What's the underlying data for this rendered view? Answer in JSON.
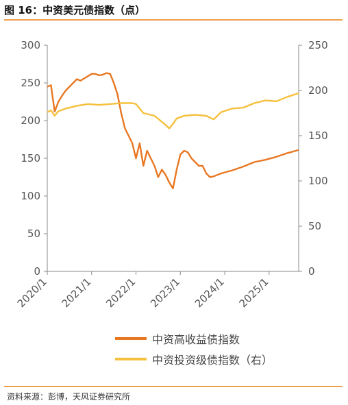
{
  "figure": {
    "title": "图 16：中资美元债指数（点）",
    "source": "资料来源：彭博，天风证券研究所"
  },
  "chart_data": {
    "type": "line",
    "x_ticks": [
      "2020/1",
      "2021/1",
      "2022/1",
      "2023/1",
      "2024/1",
      "2025/1"
    ],
    "x_range": [
      "2020/1",
      "2025/9"
    ],
    "y_left": {
      "range": [
        0,
        300
      ],
      "ticks": [
        "0",
        "50",
        "100",
        "150",
        "200",
        "250",
        "300"
      ]
    },
    "y_right": {
      "range": [
        0,
        250
      ],
      "ticks": [
        "0",
        "50",
        "100",
        "150",
        "200",
        "250"
      ]
    },
    "grid": false,
    "legend_position": "bottom",
    "series": [
      {
        "name": "中资高收益债指数",
        "axis": "left",
        "color": "#e87722",
        "points": [
          [
            "2020/1",
            245
          ],
          [
            "2020/2",
            247
          ],
          [
            "2020/3",
            212
          ],
          [
            "2020/4",
            225
          ],
          [
            "2020/5",
            233
          ],
          [
            "2020/6",
            240
          ],
          [
            "2020/7",
            245
          ],
          [
            "2020/8",
            250
          ],
          [
            "2020/9",
            255
          ],
          [
            "2020/10",
            253
          ],
          [
            "2020/11",
            256
          ],
          [
            "2020/12",
            259
          ],
          [
            "2021/1",
            262
          ],
          [
            "2021/2",
            262
          ],
          [
            "2021/3",
            260
          ],
          [
            "2021/4",
            261
          ],
          [
            "2021/5",
            263
          ],
          [
            "2021/6",
            262
          ],
          [
            "2021/7",
            250
          ],
          [
            "2021/8",
            235
          ],
          [
            "2021/9",
            210
          ],
          [
            "2021/10",
            190
          ],
          [
            "2021/11",
            180
          ],
          [
            "2021/12",
            170
          ],
          [
            "2022/1",
            150
          ],
          [
            "2022/2",
            170
          ],
          [
            "2022/3",
            140
          ],
          [
            "2022/4",
            160
          ],
          [
            "2022/5",
            150
          ],
          [
            "2022/6",
            140
          ],
          [
            "2022/7",
            125
          ],
          [
            "2022/8",
            135
          ],
          [
            "2022/9",
            128
          ],
          [
            "2022/10",
            118
          ],
          [
            "2022/11",
            110
          ],
          [
            "2022/12",
            135
          ],
          [
            "2023/1",
            155
          ],
          [
            "2023/2",
            160
          ],
          [
            "2023/3",
            158
          ],
          [
            "2023/4",
            150
          ],
          [
            "2023/5",
            145
          ],
          [
            "2023/6",
            140
          ],
          [
            "2023/7",
            140
          ],
          [
            "2023/8",
            130
          ],
          [
            "2023/9",
            125
          ],
          [
            "2023/10",
            126
          ],
          [
            "2023/11",
            128
          ],
          [
            "2023/12",
            130
          ],
          [
            "2024/3",
            134
          ],
          [
            "2024/6",
            139
          ],
          [
            "2024/9",
            145
          ],
          [
            "2024/12",
            148
          ],
          [
            "2025/3",
            152
          ],
          [
            "2025/6",
            157
          ],
          [
            "2025/9",
            161
          ]
        ]
      },
      {
        "name": "中资投资级债指数（右）",
        "axis": "right",
        "color": "#f5c03c",
        "points": [
          [
            "2020/1",
            176
          ],
          [
            "2020/2",
            178
          ],
          [
            "2020/3",
            172
          ],
          [
            "2020/4",
            177
          ],
          [
            "2020/6",
            180
          ],
          [
            "2020/9",
            183
          ],
          [
            "2020/12",
            185
          ],
          [
            "2021/3",
            184
          ],
          [
            "2021/6",
            185
          ],
          [
            "2021/9",
            186
          ],
          [
            "2021/12",
            186
          ],
          [
            "2022/1",
            185
          ],
          [
            "2022/3",
            175
          ],
          [
            "2022/6",
            172
          ],
          [
            "2022/9",
            162
          ],
          [
            "2022/10",
            158
          ],
          [
            "2022/11",
            163
          ],
          [
            "2022/12",
            169
          ],
          [
            "2023/2",
            172
          ],
          [
            "2023/5",
            173
          ],
          [
            "2023/8",
            172
          ],
          [
            "2023/10",
            168
          ],
          [
            "2023/11",
            172
          ],
          [
            "2023/12",
            176
          ],
          [
            "2024/3",
            180
          ],
          [
            "2024/6",
            181
          ],
          [
            "2024/9",
            186
          ],
          [
            "2024/12",
            189
          ],
          [
            "2025/3",
            188
          ],
          [
            "2025/6",
            193
          ],
          [
            "2025/9",
            197
          ]
        ]
      }
    ]
  }
}
